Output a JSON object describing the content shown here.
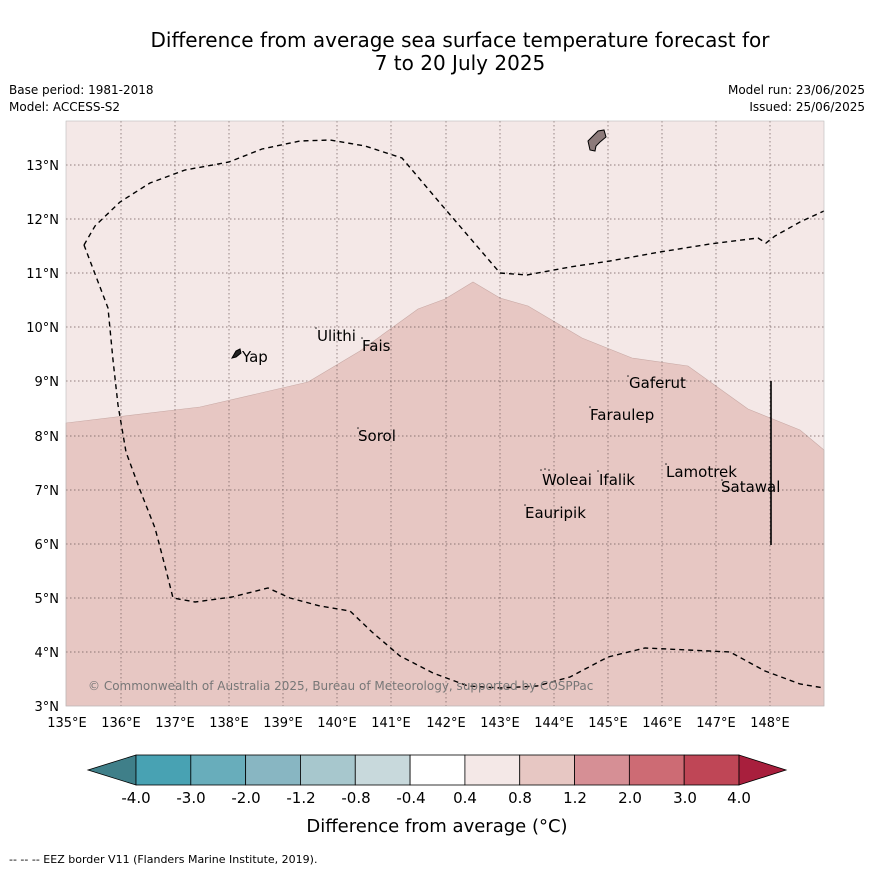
{
  "header": {
    "title_line1": "Difference from average sea surface temperature forecast for",
    "title_line2": "7 to 20 July 2025",
    "base_period": "Base period: 1981-2018",
    "model": "Model: ACCESS-S2",
    "model_run": "Model run: 23/06/2025",
    "issued": "Issued: 25/06/2025"
  },
  "map": {
    "lon_ticks": [
      "135°E",
      "136°E",
      "137°E",
      "138°E",
      "139°E",
      "140°E",
      "141°E",
      "142°E",
      "143°E",
      "144°E",
      "145°E",
      "146°E",
      "147°E",
      "148°E"
    ],
    "lat_ticks": [
      "3°N",
      "4°N",
      "5°N",
      "6°N",
      "7°N",
      "8°N",
      "9°N",
      "10°N",
      "11°N",
      "12°N",
      "13°N"
    ],
    "places": [
      "Yap",
      "Ulithi",
      "Fais",
      "Sorol",
      "Gaferut",
      "Faraulep",
      "Woleai",
      "Ifalik",
      "Lamotrek",
      "Satawal",
      "Eauripik"
    ],
    "copyright": "© Commonwealth of Australia 2025, Bureau of Meteorology, supported by COSPPac",
    "colors": {
      "band_0_4_to_0_8": "#f4e8e7",
      "band_0_8_to_1_2": "#e7c7c3",
      "land": "#8c7a7a",
      "eez_line": "#000000"
    }
  },
  "colorbar": {
    "labels": [
      "-4.0",
      "-3.0",
      "-2.0",
      "-1.2",
      "-0.8",
      "-0.4",
      "0.4",
      "0.8",
      "1.2",
      "2.0",
      "3.0",
      "4.0"
    ],
    "colors": [
      "#3f7f89",
      "#48a2b3",
      "#68adbb",
      "#88b6c2",
      "#a7c7cd",
      "#c8d9dc",
      "#ffffff",
      "#f4e8e7",
      "#e7c7c3",
      "#d68f95",
      "#cd6b74",
      "#bf4656",
      "#a81f3d"
    ],
    "title": "Difference from average (°C)"
  },
  "footer": {
    "eez_note": "-- -- -- EEZ border V11 (Flanders Marine Institute, 2019)."
  }
}
